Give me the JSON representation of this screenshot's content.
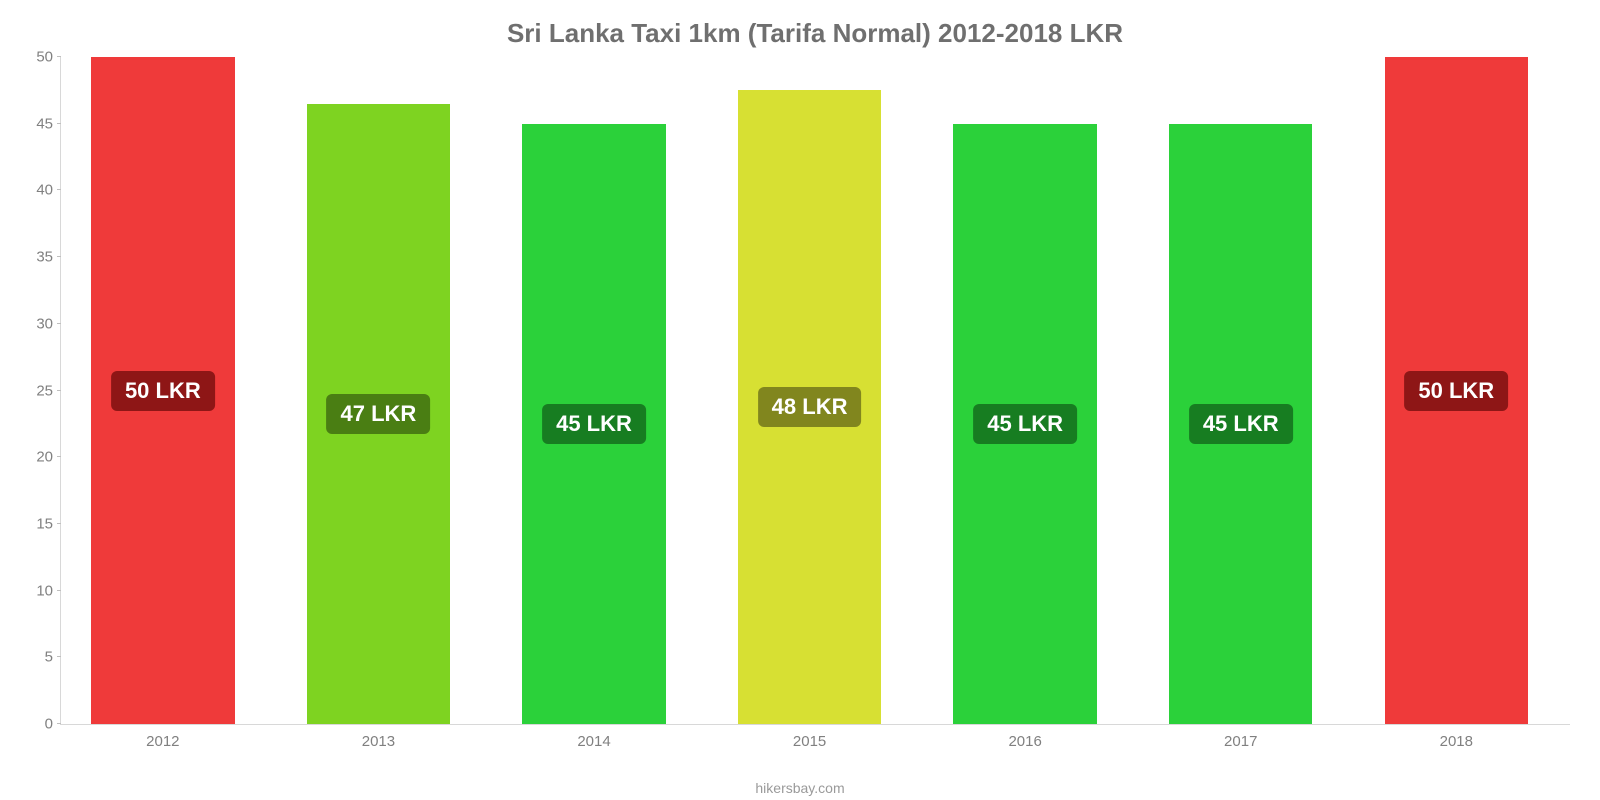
{
  "chart": {
    "type": "bar",
    "title": "Sri Lanka Taxi 1km (Tarifa Normal) 2012-2018 LKR",
    "title_color": "#6f6f6f",
    "title_fontsize": 26,
    "background_color": "#ffffff",
    "axis_color": "#d8d8d8",
    "tick_color": "#808080",
    "tick_fontsize": 15,
    "y": {
      "min": 0,
      "max": 50,
      "step": 5
    },
    "bar_width_pct": 9.5,
    "gap_pct": 14.286,
    "left_pad_pct": 2.0,
    "bars": [
      {
        "category": "2012",
        "value": 50,
        "label": "50 LKR",
        "color": "#ef3a3a",
        "label_bg": "#8e1616"
      },
      {
        "category": "2013",
        "value": 46.5,
        "label": "47 LKR",
        "color": "#7ed321",
        "label_bg": "#4a7e13"
      },
      {
        "category": "2014",
        "value": 45,
        "label": "45 LKR",
        "color": "#2bd13a",
        "label_bg": "#177d21"
      },
      {
        "category": "2015",
        "value": 47.5,
        "label": "48 LKR",
        "color": "#d7e033",
        "label_bg": "#81861e"
      },
      {
        "category": "2016",
        "value": 45,
        "label": "45 LKR",
        "color": "#2bd13a",
        "label_bg": "#177d21"
      },
      {
        "category": "2017",
        "value": 45,
        "label": "45 LKR",
        "color": "#2bd13a",
        "label_bg": "#177d21"
      },
      {
        "category": "2018",
        "value": 50,
        "label": "50 LKR",
        "color": "#ef3a3a",
        "label_bg": "#8e1616"
      }
    ],
    "value_label_fontsize": 22,
    "value_label_color": "#ffffff",
    "value_label_radius": 6,
    "footer": "hikersbay.com",
    "footer_color": "#9a9a9a",
    "footer_fontsize": 14
  }
}
